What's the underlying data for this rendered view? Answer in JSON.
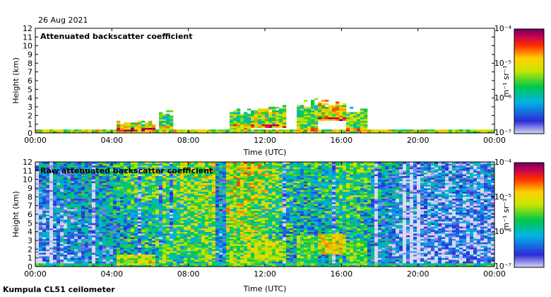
{
  "date_label": "26 Aug 2021",
  "instrument_label": "Kumpula CL51 ceilometer",
  "colorbar_unit": "m⁻¹ sr⁻¹",
  "colorbar_ticks": [
    "10⁻⁴",
    "10⁻⁵",
    "10⁻⁶",
    "10⁻⁷"
  ],
  "chart_data": [
    {
      "type": "heatmap",
      "title": "Attenuated backscatter coefficient",
      "xlabel": "Time (UTC)",
      "ylabel": "Height (km)",
      "x_ticks": [
        "00:00",
        "04:00",
        "08:00",
        "12:00",
        "16:00",
        "20:00",
        "00:00"
      ],
      "y_ticks": [
        0,
        1,
        2,
        3,
        4,
        5,
        6,
        7,
        8,
        9,
        10,
        11,
        12
      ],
      "xlim_hours": [
        0,
        24
      ],
      "ylim_km": [
        0,
        12
      ],
      "colorbar": {
        "min": 1e-07,
        "max": 0.0001,
        "scale": "log",
        "unit": "m-1 sr-1"
      },
      "features": [
        {
          "name": "surface layer",
          "t_start": 0,
          "t_end": 24,
          "top_km": 0.4,
          "log_beta": -5.8
        },
        {
          "name": "cloud",
          "t_start": 4.3,
          "t_end": 6.2,
          "base_km": 0.3,
          "top_km": 1.3,
          "log_beta": -5.2
        },
        {
          "name": "cloud",
          "t_start": 6.5,
          "t_end": 7.2,
          "base_km": 0.4,
          "top_km": 2.6,
          "log_beta": -5.6
        },
        {
          "name": "cloud",
          "t_start": 10.2,
          "t_end": 11.2,
          "base_km": 0.5,
          "top_km": 2.7,
          "log_beta": -5.6
        },
        {
          "name": "cloud",
          "t_start": 11.2,
          "t_end": 13.2,
          "base_km": 0.6,
          "top_km": 3.1,
          "log_beta": -5.3
        },
        {
          "name": "cloud",
          "t_start": 13.7,
          "t_end": 14.7,
          "base_km": 0.3,
          "top_km": 3.6,
          "log_beta": -5.5
        },
        {
          "name": "cloud",
          "t_start": 14.8,
          "t_end": 16.2,
          "base_km": 1.4,
          "top_km": 3.7,
          "log_beta": -5.1
        },
        {
          "name": "cloud",
          "t_start": 16.2,
          "t_end": 17.3,
          "base_km": 0.3,
          "top_km": 2.8,
          "log_beta": -5.5
        }
      ]
    },
    {
      "type": "heatmap",
      "title": "Raw attenuated backscatter coefficient",
      "xlabel": "Time (UTC)",
      "ylabel": "Height (km)",
      "x_ticks": [
        "00:00",
        "04:00",
        "08:00",
        "12:00",
        "16:00",
        "20:00",
        "00:00"
      ],
      "y_ticks": [
        0,
        1,
        2,
        3,
        4,
        5,
        6,
        7,
        8,
        9,
        10,
        11,
        12
      ],
      "xlim_hours": [
        0,
        24
      ],
      "ylim_km": [
        0,
        12
      ],
      "colorbar": {
        "min": 1e-07,
        "max": 0.0001,
        "scale": "log",
        "unit": "m-1 sr-1"
      },
      "background_log_beta_by_hour": [
        -6.7,
        -6.6,
        -6.5,
        -6.4,
        -6.3,
        -6.0,
        -5.9,
        -5.8,
        -5.7,
        -5.6,
        -5.5,
        -5.5,
        -5.6,
        -6.0,
        -6.2,
        -6.1,
        -5.9,
        -6.0,
        -6.4,
        -6.6,
        -6.7,
        -6.8,
        -6.8,
        -6.8,
        -6.8
      ]
    }
  ]
}
